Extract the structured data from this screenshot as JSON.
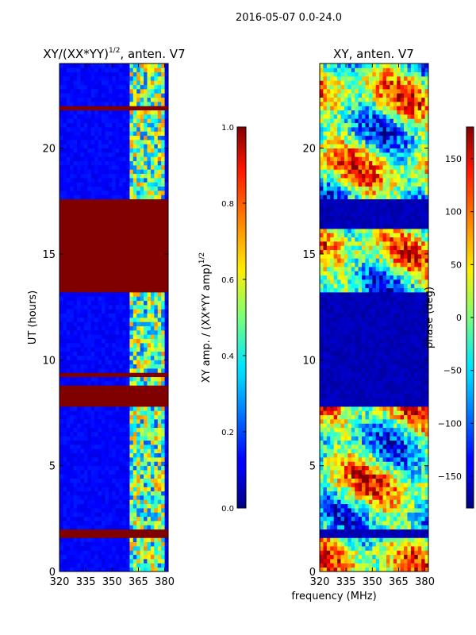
{
  "chart_data": [
    {
      "type": "heatmap",
      "suptitle": "2016-05-07 0.0-24.0",
      "title": "XY/(XX*YY)",
      "title_exponent": "1/2",
      "title_suffix": ", anten. V7",
      "xlabel": "",
      "ylabel": "UT (hours)",
      "xlim": [
        320,
        382
      ],
      "ylim": [
        0,
        24
      ],
      "xticks": [
        320,
        335,
        350,
        365,
        380
      ],
      "yticks": [
        0,
        5,
        10,
        15,
        20
      ],
      "cmap": "jet",
      "colorbar": {
        "label": "XY amp. / (XX*YY amp)",
        "label_exponent": "1/2",
        "range": [
          0.0,
          1.0
        ],
        "ticks": [
          "0.0",
          "0.2",
          "0.4",
          "0.6",
          "0.8",
          "1.0"
        ]
      },
      "high_value_bands_hours": [
        [
          1.55,
          1.95
        ],
        [
          7.8,
          8.9
        ],
        [
          9.2,
          9.4
        ],
        [
          13.3,
          16.1
        ],
        [
          16.3,
          17.6
        ],
        [
          21.9,
          22.0
        ]
      ],
      "active_band_mhz": [
        361,
        380
      ],
      "background_value": 0.1,
      "band_value": 1.0,
      "active_value_range": [
        0.2,
        0.75
      ]
    },
    {
      "type": "heatmap",
      "title": "XY, anten. V7",
      "xlabel": "frequency (MHz)",
      "ylabel": "",
      "xlim": [
        320,
        382
      ],
      "ylim": [
        0,
        24
      ],
      "xticks": [
        320,
        335,
        350,
        365,
        380
      ],
      "yticks": [
        0,
        5,
        10,
        15,
        20
      ],
      "cmap": "jet",
      "colorbar": {
        "label": "phase (deg)",
        "range": [
          -180,
          180
        ],
        "ticks": [
          "150",
          "100",
          "50",
          "0",
          "−50",
          "−100",
          "−150"
        ]
      },
      "low_value_bands_hours": [
        [
          1.55,
          1.95
        ],
        [
          7.8,
          10.3
        ],
        [
          10.3,
          13.3
        ],
        [
          16.3,
          17.6
        ]
      ],
      "band_value": -180
    }
  ]
}
